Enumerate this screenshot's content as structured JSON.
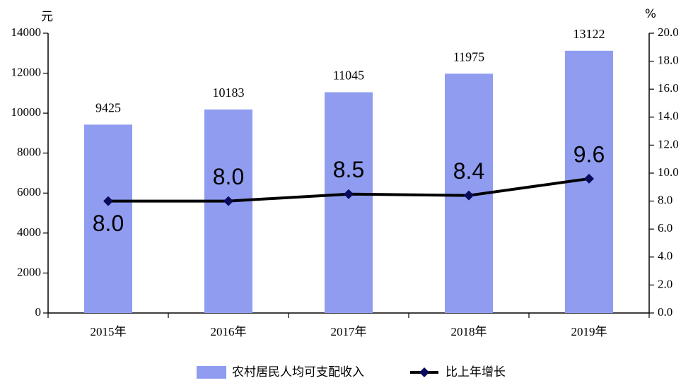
{
  "chart_data": {
    "type": "bar",
    "categories": [
      "2015年",
      "2016年",
      "2017年",
      "2018年",
      "2019年"
    ],
    "series": [
      {
        "name": "农村居民人均可支配收入",
        "color": "#8f9cf0",
        "values": [
          9425,
          10183,
          11045,
          11975,
          13122
        ]
      },
      {
        "name": "比上年增长",
        "color": "#000000",
        "marker_color": "#0a0a5a",
        "type": "line",
        "axis": "y2",
        "values": [
          8.0,
          8.0,
          8.5,
          8.4,
          9.6
        ],
        "value_labels": [
          "8.0",
          "8.0",
          "8.5",
          "8.4",
          "9.6"
        ]
      }
    ],
    "y_unit": "元",
    "y2_unit": "%",
    "ylim": [
      0,
      14000
    ],
    "yticks": [
      0,
      2000,
      4000,
      6000,
      8000,
      10000,
      12000,
      14000
    ],
    "y2lim": [
      0,
      20
    ],
    "y2ticks": [
      {
        "value": 0,
        "label": "0.0"
      },
      {
        "value": 2,
        "label": "2.0"
      },
      {
        "value": 4,
        "label": "4.0"
      },
      {
        "value": 6,
        "label": "6.0"
      },
      {
        "value": 8,
        "label": "8.0"
      },
      {
        "value": 10,
        "label": "10.0"
      },
      {
        "value": 12,
        "label": "12.0"
      },
      {
        "value": 14,
        "label": "14.0"
      },
      {
        "value": 16,
        "label": "16.0"
      },
      {
        "value": 18,
        "label": "18.0"
      },
      {
        "value": 20,
        "label": "20.0"
      }
    ],
    "legend": "bottom"
  }
}
